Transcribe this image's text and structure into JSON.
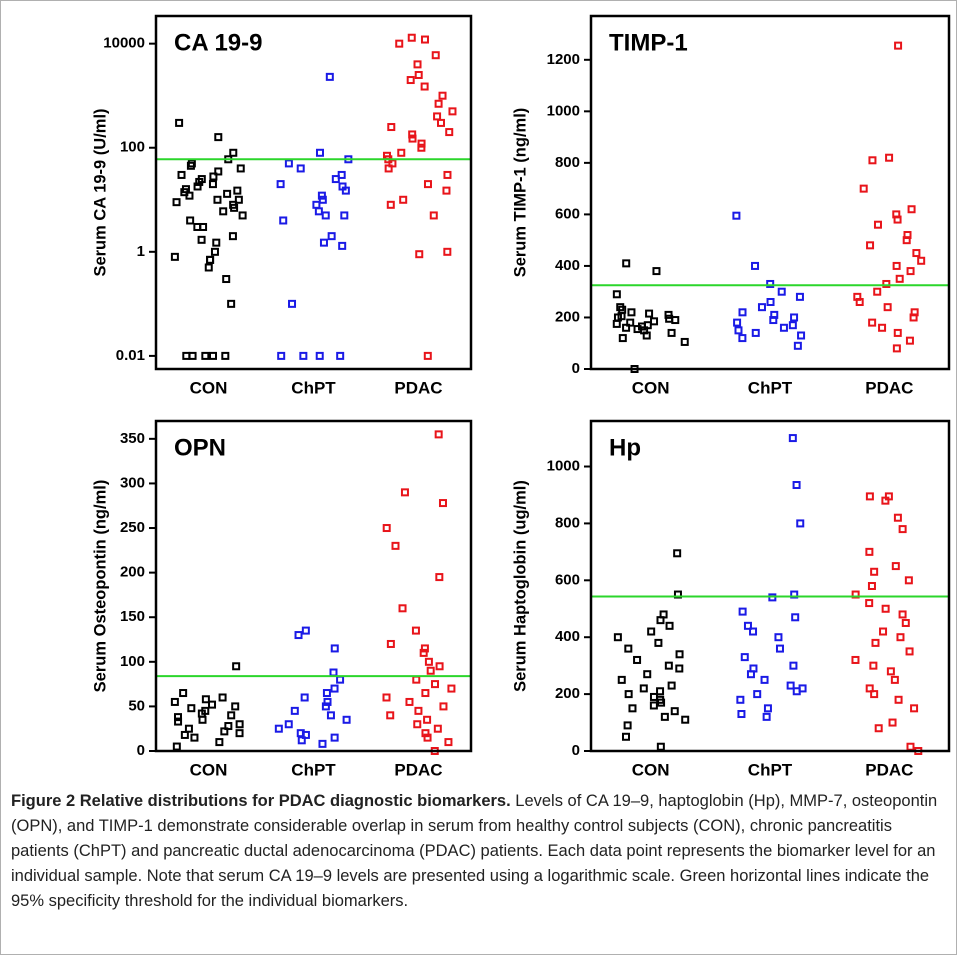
{
  "chart_data": [
    {
      "type": "strip",
      "title": "CA 19-9",
      "y_label": "Serum CA 19-9 (U/ml)",
      "log_scale": true,
      "categories": [
        "CON",
        "ChPT",
        "PDAC"
      ],
      "ylim": [
        0.0056,
        34000
      ],
      "yticks": [
        0.01,
        1,
        100,
        10000
      ],
      "threshold": 60,
      "threshold_color": "#2bd62b",
      "series": [
        {
          "color": "#000000",
          "values": [
            0.01,
            0.01,
            0.01,
            0.01,
            0.01,
            0.1,
            0.3,
            0.5,
            0.7,
            0.7,
            0.8,
            1,
            1.5,
            1.7,
            2,
            3,
            3,
            4,
            5,
            6,
            7,
            8,
            9,
            10,
            10,
            12,
            13,
            14,
            15,
            16,
            18,
            20,
            22,
            25,
            28,
            30,
            35,
            40,
            45,
            50,
            60,
            80,
            160,
            300
          ]
        },
        {
          "color": "#1a1ae6",
          "values": [
            0.01,
            0.01,
            0.01,
            0.01,
            0.1,
            1.3,
            1.5,
            2,
            4,
            5,
            5,
            6,
            8,
            10,
            12,
            15,
            18,
            20,
            25,
            30,
            40,
            50,
            60,
            80,
            2300
          ]
        },
        {
          "color": "#e8141a",
          "values": [
            0.01,
            0.9,
            1,
            5,
            8,
            10,
            15,
            20,
            30,
            40,
            50,
            60,
            70,
            80,
            100,
            120,
            150,
            180,
            200,
            250,
            300,
            400,
            500,
            700,
            1000,
            1500,
            2000,
            2500,
            4000,
            6000,
            10000,
            12000,
            13000
          ]
        }
      ]
    },
    {
      "type": "strip",
      "title": "TIMP-1",
      "y_label": "Serum TIMP-1 (ng/ml)",
      "log_scale": false,
      "categories": [
        "CON",
        "ChPT",
        "PDAC"
      ],
      "ylim": [
        0,
        1370
      ],
      "yticks": [
        0,
        200,
        400,
        600,
        800,
        1000,
        1200
      ],
      "threshold": 325,
      "threshold_color": "#2bd62b",
      "series": [
        {
          "color": "#000000",
          "values": [
            0,
            105,
            120,
            130,
            140,
            150,
            155,
            160,
            165,
            170,
            175,
            180,
            185,
            190,
            195,
            200,
            205,
            210,
            215,
            220,
            230,
            240,
            290,
            380,
            410
          ]
        },
        {
          "color": "#1a1ae6",
          "values": [
            90,
            120,
            130,
            140,
            150,
            160,
            170,
            180,
            190,
            200,
            210,
            220,
            240,
            260,
            280,
            300,
            330,
            400,
            595
          ]
        },
        {
          "color": "#e8141a",
          "values": [
            80,
            110,
            140,
            160,
            180,
            200,
            220,
            240,
            260,
            280,
            300,
            330,
            350,
            380,
            400,
            420,
            450,
            480,
            500,
            520,
            560,
            580,
            600,
            620,
            700,
            820,
            810,
            1255
          ]
        }
      ]
    },
    {
      "type": "strip",
      "title": "OPN",
      "y_label": "Serum Osteopontin (ng/ml)",
      "log_scale": false,
      "categories": [
        "CON",
        "ChPT",
        "PDAC"
      ],
      "ylim": [
        0,
        370
      ],
      "yticks": [
        0,
        50,
        100,
        150,
        200,
        250,
        300,
        350
      ],
      "threshold": 84,
      "threshold_color": "#2bd62b",
      "series": [
        {
          "color": "#000000",
          "values": [
            5,
            10,
            15,
            18,
            20,
            22,
            25,
            28,
            30,
            33,
            35,
            38,
            40,
            42,
            45,
            48,
            50,
            52,
            55,
            58,
            60,
            65,
            95
          ]
        },
        {
          "color": "#1a1ae6",
          "values": [
            8,
            12,
            15,
            18,
            20,
            25,
            30,
            35,
            40,
            45,
            50,
            55,
            60,
            65,
            70,
            80,
            88,
            115,
            130,
            135
          ]
        },
        {
          "color": "#e8141a",
          "values": [
            0,
            10,
            15,
            20,
            25,
            30,
            35,
            40,
            45,
            50,
            55,
            60,
            65,
            70,
            75,
            80,
            90,
            95,
            100,
            110,
            115,
            120,
            135,
            160,
            195,
            230,
            250,
            278,
            290,
            355
          ]
        }
      ]
    },
    {
      "type": "strip",
      "title": "Hp",
      "y_label": "Serum Haptoglobin (ug/ml)",
      "log_scale": false,
      "categories": [
        "CON",
        "ChPT",
        "PDAC"
      ],
      "ylim": [
        0,
        1160
      ],
      "yticks": [
        0,
        200,
        400,
        600,
        800,
        1000
      ],
      "threshold": 543,
      "threshold_color": "#2bd62b",
      "series": [
        {
          "color": "#000000",
          "values": [
            15,
            50,
            90,
            110,
            120,
            140,
            150,
            160,
            170,
            180,
            190,
            200,
            210,
            220,
            230,
            250,
            270,
            290,
            300,
            320,
            340,
            360,
            380,
            400,
            420,
            440,
            460,
            480,
            550,
            695
          ]
        },
        {
          "color": "#1a1ae6",
          "values": [
            120,
            130,
            150,
            180,
            200,
            210,
            220,
            230,
            250,
            270,
            290,
            300,
            330,
            360,
            400,
            420,
            440,
            470,
            490,
            540,
            550,
            800,
            935,
            1100
          ]
        },
        {
          "color": "#e8141a",
          "values": [
            0,
            15,
            80,
            100,
            150,
            180,
            200,
            220,
            250,
            280,
            300,
            320,
            350,
            380,
            400,
            420,
            450,
            480,
            500,
            520,
            550,
            580,
            600,
            630,
            650,
            700,
            780,
            820,
            880,
            895,
            895
          ]
        }
      ]
    }
  ],
  "caption": {
    "label": "Figure 2 Relative distributions for PDAC diagnostic biomarkers.",
    "text": "Levels of CA 19–9, haptoglobin (Hp), MMP-7, osteopontin (OPN), and TIMP-1 demonstrate considerable overlap in serum from healthy control subjects (CON), chronic pancreatitis patients (ChPT) and pancreatic ductal adenocarcinoma (PDAC) patients. Each data point represents the biomarker level for an individual sample. Note that serum CA 19–9 levels are presented using a logarithmic scale. Green horizontal lines indicate the 95% specificity threshold for the individual biomarkers."
  }
}
